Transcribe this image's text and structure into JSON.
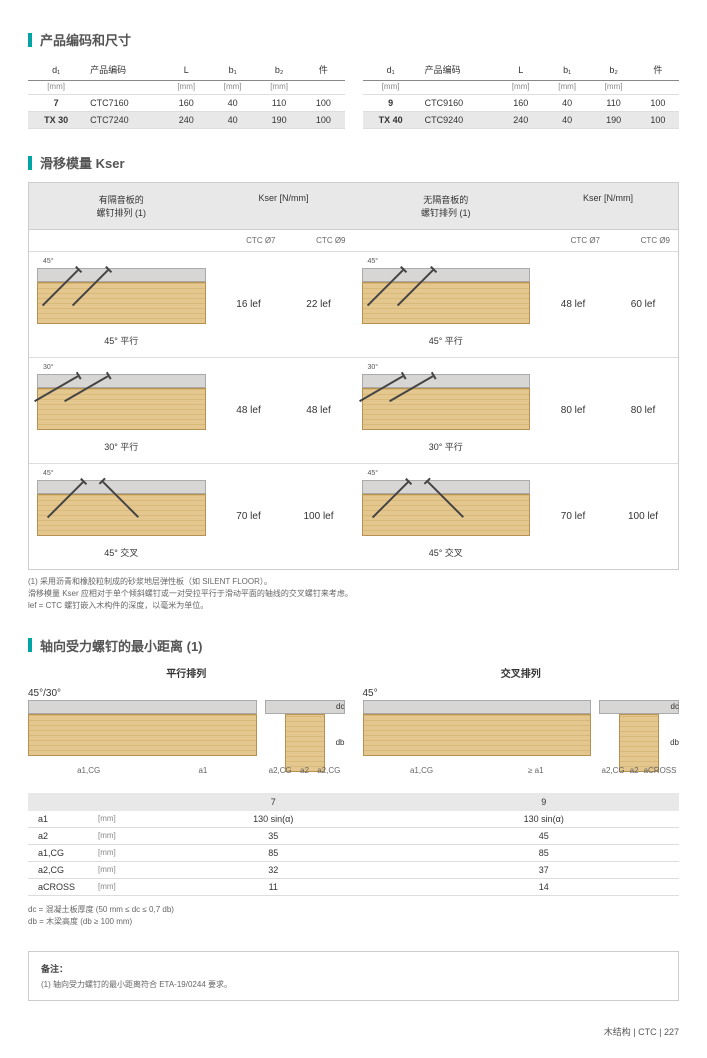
{
  "section1": {
    "title": "产品编码和尺寸",
    "tableLeft": {
      "headers": [
        "d₁",
        "产品编码",
        "L",
        "b₁",
        "b₂",
        "件"
      ],
      "units": [
        "[mm]",
        "",
        "[mm]",
        "[mm]",
        "[mm]",
        ""
      ],
      "rowlabels": [
        "7",
        "TX 30"
      ],
      "rows": [
        [
          "CTC7160",
          "160",
          "40",
          "110",
          "100"
        ],
        [
          "CTC7240",
          "240",
          "40",
          "190",
          "100"
        ]
      ]
    },
    "tableRight": {
      "headers": [
        "d₁",
        "产品编码",
        "L",
        "b₁",
        "b₂",
        "件"
      ],
      "units": [
        "[mm]",
        "",
        "[mm]",
        "[mm]",
        "[mm]",
        ""
      ],
      "rowlabels": [
        "9",
        "TX 40"
      ],
      "rows": [
        [
          "CTC9160",
          "160",
          "40",
          "110",
          "100"
        ],
        [
          "CTC9240",
          "240",
          "40",
          "190",
          "100"
        ]
      ]
    }
  },
  "section2": {
    "title": "滑移模量 Kser",
    "headLeft": "有隔音板的\n螺钉排列 (1)",
    "headRight": "无隔音板的\n螺钉排列 (1)",
    "unitLabel": "Kser [N/mm]",
    "col7": "CTC Ø7",
    "col9": "CTC Ø9",
    "rows": [
      {
        "caption": "45° 平行",
        "angle": "45°",
        "lv1": "16 lef",
        "lv2": "22 lef",
        "rv1": "48 lef",
        "rv2": "60 lef",
        "type": "parallel45"
      },
      {
        "caption": "30° 平行",
        "angle": "30°",
        "lv1": "48 lef",
        "lv2": "48 lef",
        "rv1": "80 lef",
        "rv2": "80 lef",
        "type": "parallel30"
      },
      {
        "caption": "45° 交叉",
        "angle": "45°",
        "lv1": "70 lef",
        "lv2": "100 lef",
        "rv1": "70 lef",
        "rv2": "100 lef",
        "type": "cross"
      }
    ],
    "footnotes": [
      "(1) 采用沥青和橡胶粒制成的砂浆地层弹性板（如 SILENT FLOOR）。",
      "滑移模量 Kser 应相对于单个倾斜螺钉或一对受拉平行于滑动平面的轴线的交叉螺钉来考虑。",
      "lef = CTC 螺钉嵌入木构件的深度，以毫米为单位。"
    ]
  },
  "section3": {
    "title": "轴向受力螺钉的最小距离 (1)",
    "leftTitle": "平行排列",
    "rightTitle": "交叉排列",
    "angleL": "45°/30°",
    "angleR": "45°",
    "dimlabels": {
      "a1cg": "a1,CG",
      "a1": "a1",
      "a2cg": "a2,CG",
      "a2": "a2",
      "geq_a1": "≥ a1",
      "across": "aCROSS",
      "dc": "dc",
      "db": "db"
    },
    "table": {
      "headers": [
        "",
        "",
        "7",
        "9"
      ],
      "rows": [
        {
          "param": "a1",
          "unit": "[mm]",
          "v7": "130 sin(α)",
          "v9": "130 sin(α)"
        },
        {
          "param": "a2",
          "unit": "[mm]",
          "v7": "35",
          "v9": "45"
        },
        {
          "param": "a1,CG",
          "unit": "[mm]",
          "v7": "85",
          "v9": "85"
        },
        {
          "param": "a2,CG",
          "unit": "[mm]",
          "v7": "32",
          "v9": "37"
        },
        {
          "param": "aCROSS",
          "unit": "[mm]",
          "v7": "11",
          "v9": "14"
        }
      ]
    },
    "notes": [
      "dc = 混凝土板厚度 (50 mm ≤ dc ≤ 0,7 db)",
      "db = 木梁高度 (db ≥ 100 mm)"
    ]
  },
  "notesBox": {
    "title": "备注：",
    "line": "(1) 轴向受力螺钉的最小距离符合 ETA-19/0244 要求。"
  },
  "footer": "木结构  |  CTC  |  227"
}
